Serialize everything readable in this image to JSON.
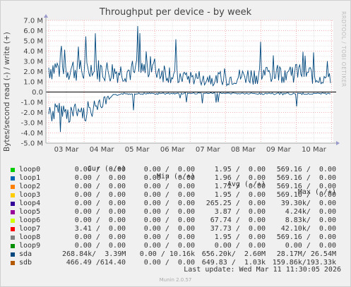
{
  "title": "Throughput per device - by week",
  "side_credit": "RRDTOOL / TOBI OETIKER",
  "ylabel": "Bytes/second read (-) / write (+)",
  "legend_headers": {
    "cur": "Cur (-/+)",
    "min": "Min (-/+)",
    "avg": "Avg (-/+)",
    "max": "Max (-/+)"
  },
  "legend_rows": [
    {
      "name": "loop0",
      "color": "#00cc00",
      "cur": "0.00 /  0.00",
      "min": "0.00 /  0.00",
      "avg": "1.95 /  0.00",
      "max": "569.16 /  0.00"
    },
    {
      "name": "loop1",
      "color": "#0066b3",
      "cur": "0.00 /  0.00",
      "min": "0.00 /  0.00",
      "avg": "1.96 /  0.00",
      "max": "569.16 /  0.00"
    },
    {
      "name": "loop2",
      "color": "#ff8000",
      "cur": "0.00 /  0.00",
      "min": "0.00 /  0.00",
      "avg": "1.71 /  0.00",
      "max": "569.16 /  0.00"
    },
    {
      "name": "loop3",
      "color": "#ffcc00",
      "cur": "0.00 /  0.00",
      "min": "0.00 /  0.00",
      "avg": "1.95 /  0.00",
      "max": "569.16 /  0.00"
    },
    {
      "name": "loop4",
      "color": "#330099",
      "cur": "0.00 /  0.00",
      "min": "0.00 /  0.00",
      "avg": "265.25 /  0.00",
      "max": "39.30k/  0.00"
    },
    {
      "name": "loop5",
      "color": "#990099",
      "cur": "0.00 /  0.00",
      "min": "0.00 /  0.00",
      "avg": "3.87 /  0.00",
      "max": "4.24k/  0.00"
    },
    {
      "name": "loop6",
      "color": "#ccff00",
      "cur": "0.00 /  0.00",
      "min": "0.00 /  0.00",
      "avg": "67.74 /  0.00",
      "max": "8.83k/  0.00"
    },
    {
      "name": "loop7",
      "color": "#ff0000",
      "cur": "3.41 /  0.00",
      "min": "0.00 /  0.00",
      "avg": "37.73 /  0.00",
      "max": "42.10k/  0.00"
    },
    {
      "name": "loop8",
      "color": "#808080",
      "cur": "0.00 /  0.00",
      "min": "0.00 /  0.00",
      "avg": "1.95 /  0.00",
      "max": "569.16 /  0.00"
    },
    {
      "name": "loop9",
      "color": "#008f00",
      "cur": "0.00 /  0.00",
      "min": "0.00 /  0.00",
      "avg": "0.00 /  0.00",
      "max": "0.00 /  0.00"
    },
    {
      "name": "sda",
      "color": "#00487d",
      "cur": "268.84k/  3.39M",
      "min": "0.00 / 10.16k",
      "avg": "656.20k/  2.60M",
      "max": "28.17M/ 26.54M"
    },
    {
      "name": "sdb",
      "color": "#b35a00",
      "cur": "466.49 /614.40",
      "min": "0.00 /  0.00",
      "avg": "649.83 /  1.03k",
      "max": "159.86k/193.33k"
    }
  ],
  "last_update": "Last update: Wed Mar 11 11:30:05 2026",
  "munin_version": "Munin 2.0.57",
  "chart_data": {
    "type": "area",
    "title": "Throughput per device - by week",
    "ylabel": "Bytes/second read (-) / write (+)",
    "y_unit": "bytes/second",
    "ylim": [
      -5000000,
      7000000
    ],
    "y_ticks": [
      {
        "value": 7000000,
        "label": "7.0 M"
      },
      {
        "value": 6000000,
        "label": "6.0 M"
      },
      {
        "value": 5000000,
        "label": "5.0 M"
      },
      {
        "value": 4000000,
        "label": "4.0 M"
      },
      {
        "value": 3000000,
        "label": "3.0 M"
      },
      {
        "value": 2000000,
        "label": "2.0 M"
      },
      {
        "value": 1000000,
        "label": "1.0 M"
      },
      {
        "value": 0,
        "label": "0.0"
      },
      {
        "value": -1000000,
        "label": "-1.0 M"
      },
      {
        "value": -2000000,
        "label": "-2.0 M"
      },
      {
        "value": -3000000,
        "label": "-3.0 M"
      },
      {
        "value": -4000000,
        "label": "-4.0 M"
      },
      {
        "value": -5000000,
        "label": "-5.0 M"
      }
    ],
    "x_labels": [
      "03 Mar",
      "04 Mar",
      "05 Mar",
      "06 Mar",
      "07 Mar",
      "08 Mar",
      "09 Mar",
      "10 Mar"
    ],
    "x_label_day_index": [
      0,
      1,
      2,
      3,
      4,
      5,
      6,
      7
    ],
    "x_domain_days": [
      -0.08,
      8.05
    ],
    "grid": true,
    "dominant_series": "sda",
    "series_color": "#00487d",
    "write_daily_envelope": [
      {
        "day": 0,
        "typical": 3000000,
        "peak": 5300000
      },
      {
        "day": 1,
        "typical": 2800000,
        "peak": 5100000
      },
      {
        "day": 2,
        "typical": 2500000,
        "peak": 6200000
      },
      {
        "day": 3,
        "typical": 2800000,
        "peak": 6700000
      },
      {
        "day": 4,
        "typical": 1800000,
        "peak": 3600000
      },
      {
        "day": 5,
        "typical": 1700000,
        "peak": 3500000
      },
      {
        "day": 6,
        "typical": 2200000,
        "peak": 4600000
      },
      {
        "day": 7,
        "typical": 2600000,
        "peak": 6300000
      },
      {
        "day": 8,
        "typical": 1500000,
        "peak": 3390000
      }
    ],
    "read_daily_envelope": [
      {
        "day": 0,
        "typical": -2400000,
        "peak": -4300000
      },
      {
        "day": 1,
        "typical": -2400000,
        "peak": -4400000
      },
      {
        "day": 2,
        "typical": -200000,
        "peak": -1800000
      },
      {
        "day": 3,
        "typical": -200000,
        "peak": -2100000
      },
      {
        "day": 4,
        "typical": -150000,
        "peak": -1400000
      },
      {
        "day": 5,
        "typical": -150000,
        "peak": -1000000
      },
      {
        "day": 6,
        "typical": -200000,
        "peak": -1600000
      },
      {
        "day": 7,
        "typical": -200000,
        "peak": -1500000
      },
      {
        "day": 8,
        "typical": -200000,
        "peak": -1200000
      }
    ]
  }
}
